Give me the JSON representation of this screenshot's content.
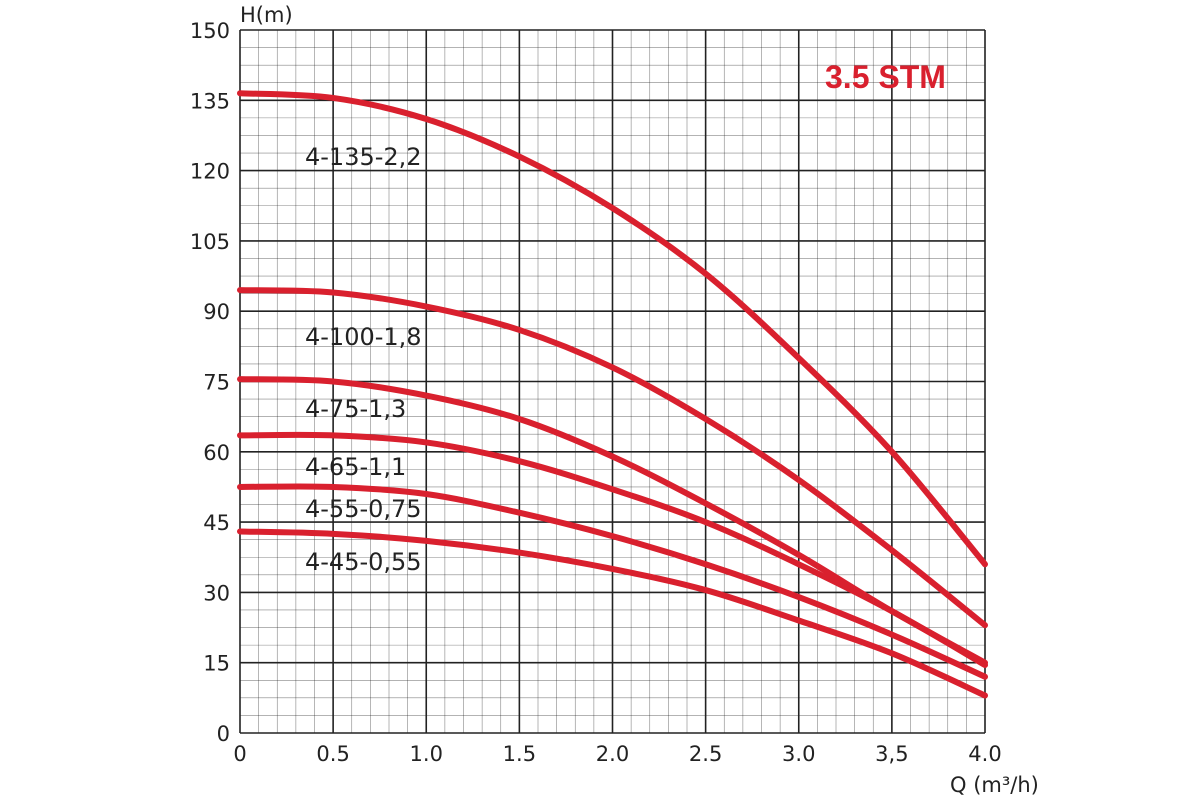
{
  "chart_data": {
    "type": "line",
    "title": "3.5 STM",
    "xlabel": "Q (m³/h)",
    "ylabel": "H(m)",
    "xlim": [
      0,
      4.0
    ],
    "ylim": [
      0,
      150
    ],
    "x_ticks": [
      "0",
      "0.5",
      "1.0",
      "1.5",
      "2.0",
      "2.5",
      "3.0",
      "3,5",
      "4.0"
    ],
    "y_ticks": [
      "0",
      "15",
      "30",
      "45",
      "60",
      "75",
      "90",
      "105",
      "120",
      "135",
      "150"
    ],
    "grid": true,
    "colors": {
      "series": "#d9202e",
      "title": "#d9202e",
      "grid": "#222222"
    },
    "series": [
      {
        "name": "4-135-2,2",
        "x": [
          0,
          0.5,
          1.0,
          1.5,
          2.0,
          2.5,
          3.0,
          3.5,
          4.0
        ],
        "y": [
          136.5,
          135.5,
          131,
          123,
          112,
          98,
          80,
          60,
          36
        ]
      },
      {
        "name": "4-100-1,8",
        "x": [
          0,
          0.5,
          1.0,
          1.5,
          2.0,
          2.5,
          3.0,
          3.5,
          4.0
        ],
        "y": [
          94.5,
          94,
          91,
          86,
          78,
          67,
          54,
          39,
          23
        ]
      },
      {
        "name": "4-75-1,3",
        "x": [
          0,
          0.5,
          1.0,
          1.5,
          2.0,
          2.5,
          3.0,
          3.5,
          4.0
        ],
        "y": [
          75.5,
          75,
          72,
          67,
          59,
          49,
          38,
          26,
          15
        ]
      },
      {
        "name": "4-65-1,1",
        "x": [
          0,
          0.5,
          1.0,
          1.5,
          2.0,
          2.5,
          3.0,
          3.5,
          4.0
        ],
        "y": [
          63.5,
          63.5,
          62,
          58,
          52,
          45,
          36,
          26,
          14.5
        ]
      },
      {
        "name": "4-55-0,75",
        "x": [
          0,
          0.5,
          1.0,
          1.5,
          2.0,
          2.5,
          3.0,
          3.5,
          4.0
        ],
        "y": [
          52.5,
          52.5,
          51,
          47,
          42,
          36,
          29,
          21,
          12
        ]
      },
      {
        "name": "4-45-0,55",
        "x": [
          0,
          0.5,
          1.0,
          1.5,
          2.0,
          2.5,
          3.0,
          3.5,
          4.0
        ],
        "y": [
          43,
          42.5,
          41,
          38.5,
          35,
          30.5,
          24,
          17,
          8
        ]
      }
    ]
  }
}
